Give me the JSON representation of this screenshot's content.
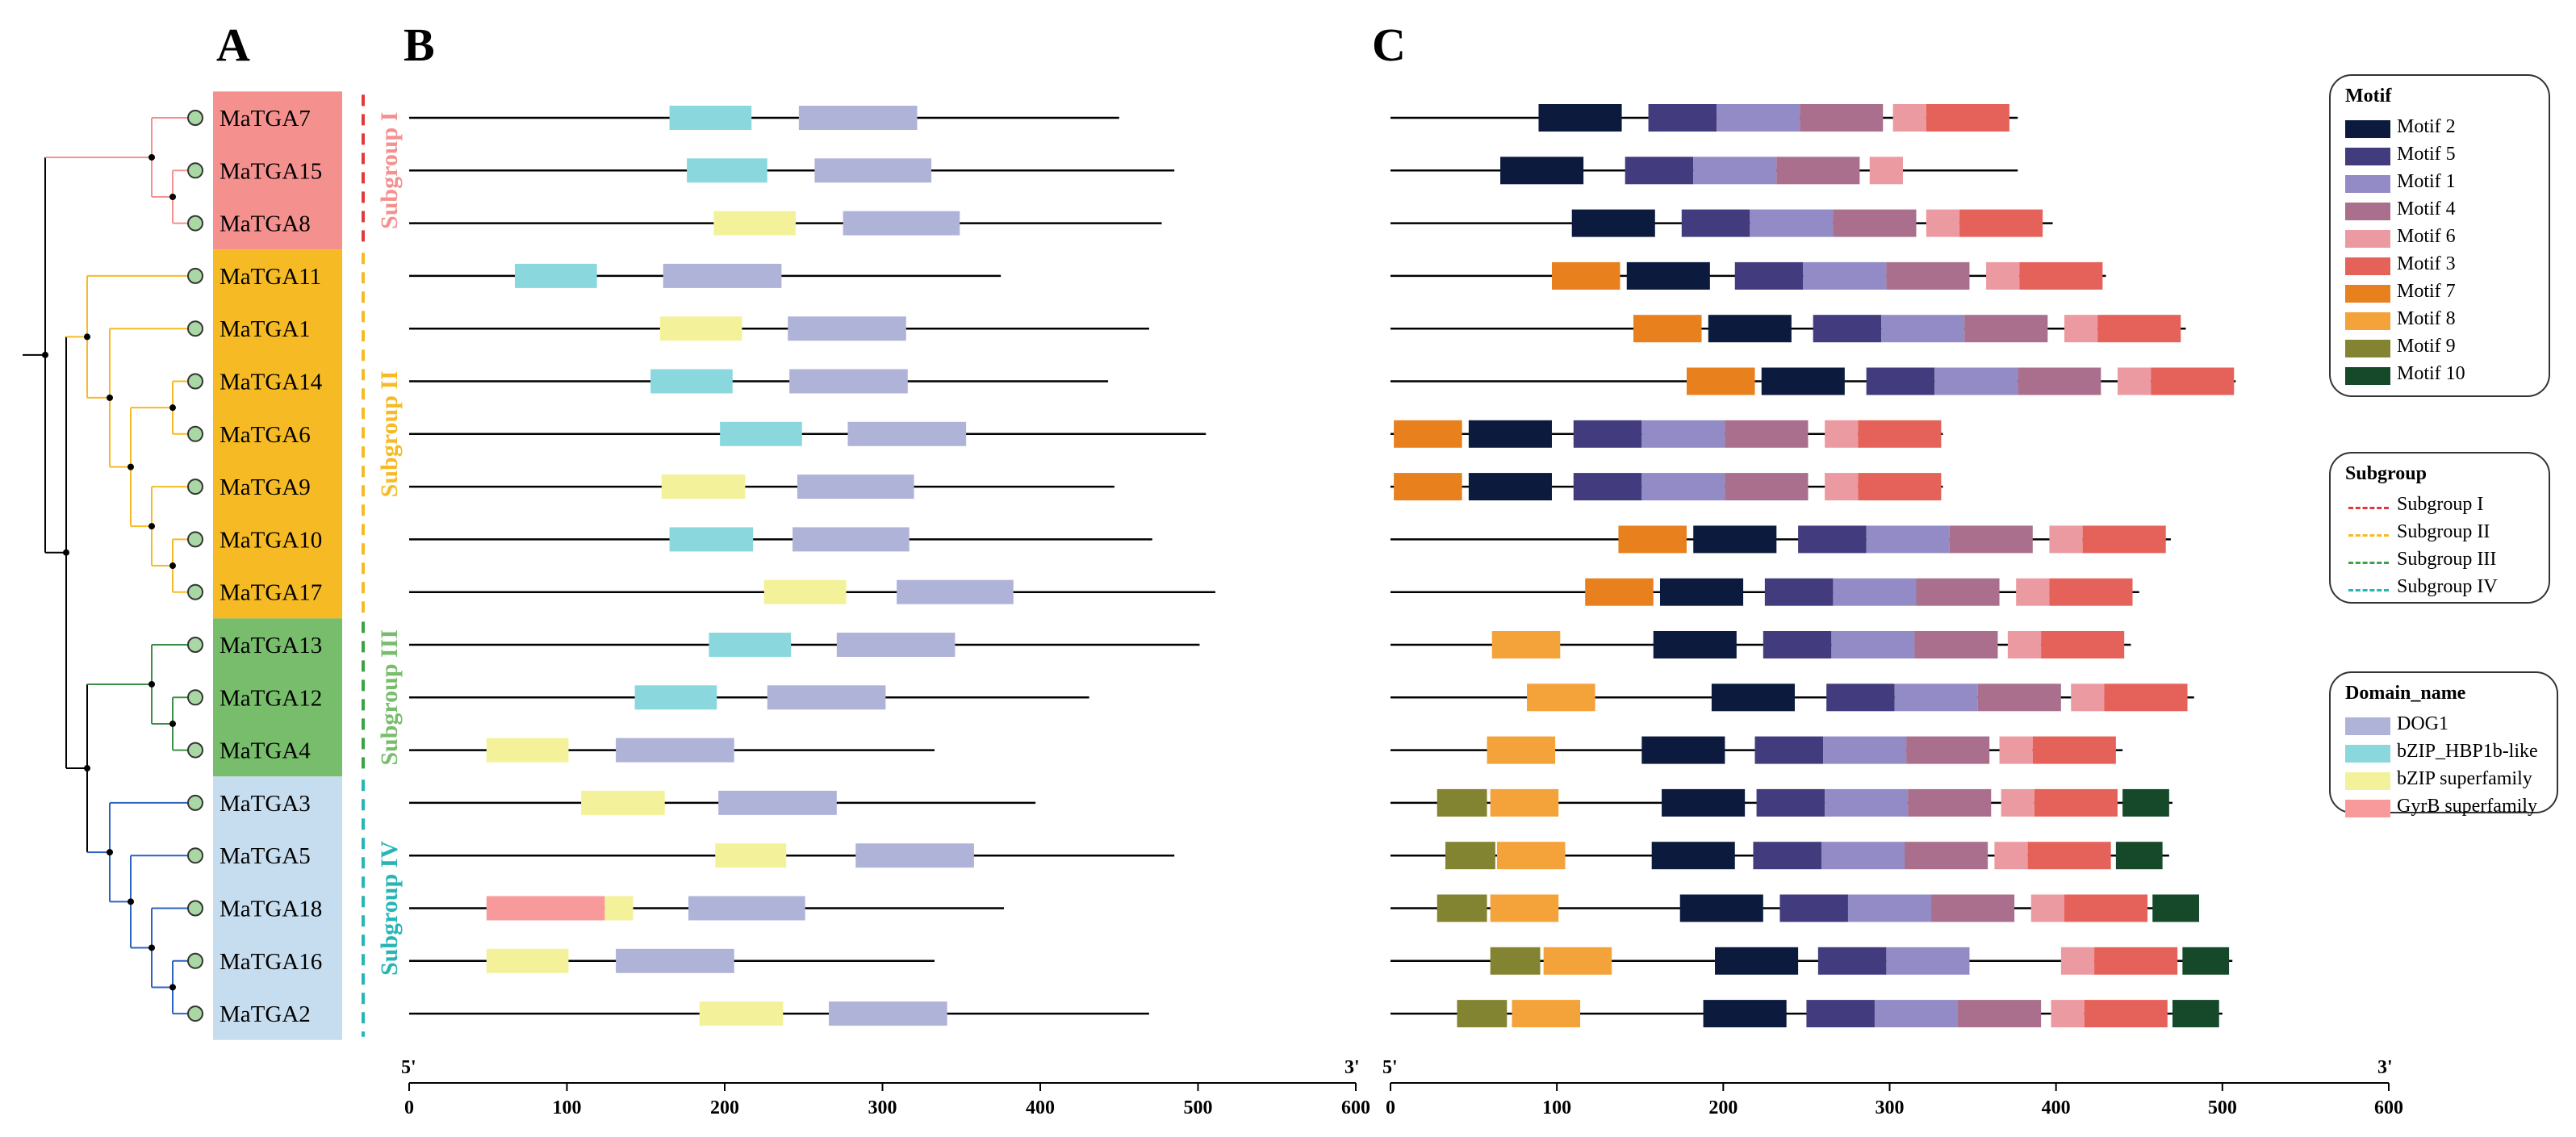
{
  "panels": {
    "a": "A",
    "b": "B",
    "c": "C"
  },
  "genes": [
    {
      "name": "MaTGA7",
      "subgroup": "I"
    },
    {
      "name": "MaTGA15",
      "subgroup": "I"
    },
    {
      "name": "MaTGA8",
      "subgroup": "I"
    },
    {
      "name": "MaTGA11",
      "subgroup": "II"
    },
    {
      "name": "MaTGA1",
      "subgroup": "II"
    },
    {
      "name": "MaTGA14",
      "subgroup": "II"
    },
    {
      "name": "MaTGA6",
      "subgroup": "II"
    },
    {
      "name": "MaTGA9",
      "subgroup": "II"
    },
    {
      "name": "MaTGA10",
      "subgroup": "II"
    },
    {
      "name": "MaTGA17",
      "subgroup": "II"
    },
    {
      "name": "MaTGA13",
      "subgroup": "III"
    },
    {
      "name": "MaTGA12",
      "subgroup": "III"
    },
    {
      "name": "MaTGA4",
      "subgroup": "III"
    },
    {
      "name": "MaTGA3",
      "subgroup": "IV"
    },
    {
      "name": "MaTGA5",
      "subgroup": "IV"
    },
    {
      "name": "MaTGA18",
      "subgroup": "IV"
    },
    {
      "name": "MaTGA16",
      "subgroup": "IV"
    },
    {
      "name": "MaTGA2",
      "subgroup": "IV"
    }
  ],
  "subgroups": {
    "I": {
      "label": "Subgroup I",
      "color": "#f4918f",
      "line": "#e23a3a",
      "text": "#f4918f"
    },
    "II": {
      "label": "Subgroup II",
      "color": "#f6bb24",
      "line": "#f6bb24",
      "text": "#f6bb24"
    },
    "III": {
      "label": "Subgroup III",
      "color": "#77bd6c",
      "line": "#3aa345",
      "text": "#77bd6c"
    },
    "IV": {
      "label": "Subgroup IV",
      "color": "#c6ddef",
      "line": "#27b5b5",
      "text": "#27b5b5"
    }
  },
  "tree": {
    "clade_colors": {
      "I": "#f4918f",
      "II": "#f6bb24",
      "III": "#3a8f45",
      "IV": "#2d63c0",
      "root": "#000000"
    },
    "leaf_node_color": "#a9d8a4"
  },
  "domains": {
    "length": [
      450,
      485,
      477,
      375,
      469,
      443,
      505,
      447,
      471,
      511,
      501,
      431,
      333,
      397,
      485,
      377,
      333,
      469
    ],
    "items": [
      [
        {
          "d": "bZIP_HBP1b-like",
          "s": 165,
          "e": 217
        },
        {
          "d": "DOG1",
          "s": 247,
          "e": 322
        }
      ],
      [
        {
          "d": "bZIP_HBP1b-like",
          "s": 176,
          "e": 227
        },
        {
          "d": "DOG1",
          "s": 257,
          "e": 331
        }
      ],
      [
        {
          "d": "bZIP superfamily",
          "s": 193,
          "e": 245
        },
        {
          "d": "DOG1",
          "s": 275,
          "e": 349
        }
      ],
      [
        {
          "d": "bZIP_HBP1b-like",
          "s": 67,
          "e": 119
        },
        {
          "d": "DOG1",
          "s": 161,
          "e": 236
        }
      ],
      [
        {
          "d": "bZIP superfamily",
          "s": 159,
          "e": 211
        },
        {
          "d": "DOG1",
          "s": 240,
          "e": 315
        }
      ],
      [
        {
          "d": "bZIP_HBP1b-like",
          "s": 153,
          "e": 205
        },
        {
          "d": "DOG1",
          "s": 241,
          "e": 316
        }
      ],
      [
        {
          "d": "bZIP_HBP1b-like",
          "s": 197,
          "e": 249
        },
        {
          "d": "DOG1",
          "s": 278,
          "e": 353
        }
      ],
      [
        {
          "d": "bZIP superfamily",
          "s": 160,
          "e": 213
        },
        {
          "d": "DOG1",
          "s": 246,
          "e": 320
        }
      ],
      [
        {
          "d": "bZIP_HBP1b-like",
          "s": 165,
          "e": 218
        },
        {
          "d": "DOG1",
          "s": 243,
          "e": 317
        }
      ],
      [
        {
          "d": "bZIP superfamily",
          "s": 225,
          "e": 277
        },
        {
          "d": "DOG1",
          "s": 309,
          "e": 383
        }
      ],
      [
        {
          "d": "bZIP_HBP1b-like",
          "s": 190,
          "e": 242
        },
        {
          "d": "DOG1",
          "s": 271,
          "e": 346
        }
      ],
      [
        {
          "d": "bZIP_HBP1b-like",
          "s": 143,
          "e": 195
        },
        {
          "d": "DOG1",
          "s": 227,
          "e": 302
        }
      ],
      [
        {
          "d": "bZIP superfamily",
          "s": 49,
          "e": 101
        },
        {
          "d": "DOG1",
          "s": 131,
          "e": 206
        }
      ],
      [
        {
          "d": "bZIP superfamily",
          "s": 109,
          "e": 162
        },
        {
          "d": "DOG1",
          "s": 196,
          "e": 271
        }
      ],
      [
        {
          "d": "bZIP superfamily",
          "s": 194,
          "e": 239
        },
        {
          "d": "DOG1",
          "s": 283,
          "e": 358
        }
      ],
      [
        {
          "d": "GyrB superfamily",
          "s": 49,
          "e": 124
        },
        {
          "d": "bZIP superfamily",
          "s": 124,
          "e": 142
        },
        {
          "d": "DOG1",
          "s": 177,
          "e": 251
        }
      ],
      [
        {
          "d": "bZIP superfamily",
          "s": 49,
          "e": 101
        },
        {
          "d": "DOG1",
          "s": 131,
          "e": 206
        }
      ],
      [
        {
          "d": "bZIP superfamily",
          "s": 184,
          "e": 237
        },
        {
          "d": "DOG1",
          "s": 266,
          "e": 341
        }
      ]
    ]
  },
  "motifs": {
    "length": [
      377,
      377,
      398,
      430,
      478,
      508,
      332,
      332,
      469,
      450,
      445,
      483,
      440,
      470,
      468,
      484,
      506,
      500
    ],
    "items": [
      [
        {
          "m": "Motif 2",
          "s": 89,
          "e": 139
        },
        {
          "m": "Motif 5",
          "s": 155,
          "e": 196
        },
        {
          "m": "Motif 1",
          "s": 196,
          "e": 246
        },
        {
          "m": "Motif 4",
          "s": 246,
          "e": 296
        },
        {
          "m": "Motif 6",
          "s": 302,
          "e": 322
        },
        {
          "m": "Motif 3",
          "s": 322,
          "e": 372
        }
      ],
      [
        {
          "m": "Motif 2",
          "s": 66,
          "e": 116
        },
        {
          "m": "Motif 5",
          "s": 141,
          "e": 182
        },
        {
          "m": "Motif 1",
          "s": 182,
          "e": 232
        },
        {
          "m": "Motif 4",
          "s": 232,
          "e": 282
        },
        {
          "m": "Motif 6",
          "s": 288,
          "e": 308
        }
      ],
      [
        {
          "m": "Motif 2",
          "s": 109,
          "e": 159
        },
        {
          "m": "Motif 5",
          "s": 175,
          "e": 216
        },
        {
          "m": "Motif 1",
          "s": 216,
          "e": 266
        },
        {
          "m": "Motif 4",
          "s": 266,
          "e": 316
        },
        {
          "m": "Motif 6",
          "s": 322,
          "e": 342
        },
        {
          "m": "Motif 3",
          "s": 342,
          "e": 392
        }
      ],
      [
        {
          "m": "Motif 7",
          "s": 97,
          "e": 138
        },
        {
          "m": "Motif 2",
          "s": 142,
          "e": 192
        },
        {
          "m": "Motif 5",
          "s": 207,
          "e": 248
        },
        {
          "m": "Motif 1",
          "s": 248,
          "e": 298
        },
        {
          "m": "Motif 4",
          "s": 298,
          "e": 348
        },
        {
          "m": "Motif 6",
          "s": 358,
          "e": 378
        },
        {
          "m": "Motif 3",
          "s": 378,
          "e": 428
        }
      ],
      [
        {
          "m": "Motif 7",
          "s": 146,
          "e": 187
        },
        {
          "m": "Motif 2",
          "s": 191,
          "e": 241
        },
        {
          "m": "Motif 5",
          "s": 254,
          "e": 295
        },
        {
          "m": "Motif 1",
          "s": 295,
          "e": 345
        },
        {
          "m": "Motif 4",
          "s": 345,
          "e": 395
        },
        {
          "m": "Motif 6",
          "s": 405,
          "e": 425
        },
        {
          "m": "Motif 3",
          "s": 425,
          "e": 475
        }
      ],
      [
        {
          "m": "Motif 7",
          "s": 178,
          "e": 219
        },
        {
          "m": "Motif 2",
          "s": 223,
          "e": 273
        },
        {
          "m": "Motif 5",
          "s": 286,
          "e": 327
        },
        {
          "m": "Motif 1",
          "s": 327,
          "e": 377
        },
        {
          "m": "Motif 4",
          "s": 377,
          "e": 427
        },
        {
          "m": "Motif 6",
          "s": 437,
          "e": 457
        },
        {
          "m": "Motif 3",
          "s": 457,
          "e": 507
        }
      ],
      [
        {
          "m": "Motif 7",
          "s": 2,
          "e": 43
        },
        {
          "m": "Motif 2",
          "s": 47,
          "e": 97
        },
        {
          "m": "Motif 5",
          "s": 110,
          "e": 151
        },
        {
          "m": "Motif 1",
          "s": 151,
          "e": 201
        },
        {
          "m": "Motif 4",
          "s": 201,
          "e": 251
        },
        {
          "m": "Motif 6",
          "s": 261,
          "e": 281
        },
        {
          "m": "Motif 3",
          "s": 281,
          "e": 331
        }
      ],
      [
        {
          "m": "Motif 7",
          "s": 2,
          "e": 43
        },
        {
          "m": "Motif 2",
          "s": 47,
          "e": 97
        },
        {
          "m": "Motif 5",
          "s": 110,
          "e": 151
        },
        {
          "m": "Motif 1",
          "s": 151,
          "e": 201
        },
        {
          "m": "Motif 4",
          "s": 201,
          "e": 251
        },
        {
          "m": "Motif 6",
          "s": 261,
          "e": 281
        },
        {
          "m": "Motif 3",
          "s": 281,
          "e": 331
        }
      ],
      [
        {
          "m": "Motif 7",
          "s": 137,
          "e": 178
        },
        {
          "m": "Motif 2",
          "s": 182,
          "e": 232
        },
        {
          "m": "Motif 5",
          "s": 245,
          "e": 286
        },
        {
          "m": "Motif 1",
          "s": 286,
          "e": 336
        },
        {
          "m": "Motif 4",
          "s": 336,
          "e": 386
        },
        {
          "m": "Motif 6",
          "s": 396,
          "e": 416
        },
        {
          "m": "Motif 3",
          "s": 416,
          "e": 466
        }
      ],
      [
        {
          "m": "Motif 7",
          "s": 117,
          "e": 158
        },
        {
          "m": "Motif 2",
          "s": 162,
          "e": 212
        },
        {
          "m": "Motif 5",
          "s": 225,
          "e": 266
        },
        {
          "m": "Motif 1",
          "s": 266,
          "e": 316
        },
        {
          "m": "Motif 4",
          "s": 316,
          "e": 366
        },
        {
          "m": "Motif 6",
          "s": 376,
          "e": 396
        },
        {
          "m": "Motif 3",
          "s": 396,
          "e": 446
        }
      ],
      [
        {
          "m": "Motif 8",
          "s": 61,
          "e": 102
        },
        {
          "m": "Motif 2",
          "s": 158,
          "e": 208
        },
        {
          "m": "Motif 5",
          "s": 224,
          "e": 265
        },
        {
          "m": "Motif 1",
          "s": 265,
          "e": 315
        },
        {
          "m": "Motif 4",
          "s": 315,
          "e": 365
        },
        {
          "m": "Motif 6",
          "s": 371,
          "e": 391
        },
        {
          "m": "Motif 3",
          "s": 391,
          "e": 441
        }
      ],
      [
        {
          "m": "Motif 8",
          "s": 82,
          "e": 123
        },
        {
          "m": "Motif 2",
          "s": 193,
          "e": 243
        },
        {
          "m": "Motif 5",
          "s": 262,
          "e": 303
        },
        {
          "m": "Motif 1",
          "s": 303,
          "e": 353
        },
        {
          "m": "Motif 4",
          "s": 353,
          "e": 403
        },
        {
          "m": "Motif 6",
          "s": 409,
          "e": 429
        },
        {
          "m": "Motif 3",
          "s": 429,
          "e": 479
        }
      ],
      [
        {
          "m": "Motif 8",
          "s": 58,
          "e": 99
        },
        {
          "m": "Motif 2",
          "s": 151,
          "e": 201
        },
        {
          "m": "Motif 5",
          "s": 219,
          "e": 260
        },
        {
          "m": "Motif 1",
          "s": 260,
          "e": 310
        },
        {
          "m": "Motif 4",
          "s": 310,
          "e": 360
        },
        {
          "m": "Motif 6",
          "s": 366,
          "e": 386
        },
        {
          "m": "Motif 3",
          "s": 386,
          "e": 436
        }
      ],
      [
        {
          "m": "Motif 9",
          "s": 28,
          "e": 58
        },
        {
          "m": "Motif 8",
          "s": 60,
          "e": 101
        },
        {
          "m": "Motif 2",
          "s": 163,
          "e": 213
        },
        {
          "m": "Motif 5",
          "s": 220,
          "e": 261
        },
        {
          "m": "Motif 1",
          "s": 261,
          "e": 311
        },
        {
          "m": "Motif 4",
          "s": 311,
          "e": 361
        },
        {
          "m": "Motif 6",
          "s": 367,
          "e": 387
        },
        {
          "m": "Motif 3",
          "s": 387,
          "e": 437
        },
        {
          "m": "Motif 10",
          "s": 440,
          "e": 468
        }
      ],
      [
        {
          "m": "Motif 9",
          "s": 33,
          "e": 63
        },
        {
          "m": "Motif 8",
          "s": 64,
          "e": 105
        },
        {
          "m": "Motif 2",
          "s": 157,
          "e": 207
        },
        {
          "m": "Motif 5",
          "s": 218,
          "e": 259
        },
        {
          "m": "Motif 1",
          "s": 259,
          "e": 309
        },
        {
          "m": "Motif 4",
          "s": 309,
          "e": 359
        },
        {
          "m": "Motif 6",
          "s": 363,
          "e": 383
        },
        {
          "m": "Motif 3",
          "s": 383,
          "e": 433
        },
        {
          "m": "Motif 10",
          "s": 436,
          "e": 464
        }
      ],
      [
        {
          "m": "Motif 9",
          "s": 28,
          "e": 58
        },
        {
          "m": "Motif 8",
          "s": 60,
          "e": 101
        },
        {
          "m": "Motif 2",
          "s": 174,
          "e": 224
        },
        {
          "m": "Motif 5",
          "s": 234,
          "e": 275
        },
        {
          "m": "Motif 1",
          "s": 275,
          "e": 325
        },
        {
          "m": "Motif 4",
          "s": 325,
          "e": 375
        },
        {
          "m": "Motif 6",
          "s": 385,
          "e": 405
        },
        {
          "m": "Motif 3",
          "s": 405,
          "e": 455
        },
        {
          "m": "Motif 10",
          "s": 458,
          "e": 486
        }
      ],
      [
        {
          "m": "Motif 9",
          "s": 60,
          "e": 90
        },
        {
          "m": "Motif 8",
          "s": 92,
          "e": 133
        },
        {
          "m": "Motif 2",
          "s": 195,
          "e": 245
        },
        {
          "m": "Motif 5",
          "s": 257,
          "e": 298
        },
        {
          "m": "Motif 1",
          "s": 298,
          "e": 348
        },
        {
          "m": "Motif 6",
          "s": 403,
          "e": 423
        },
        {
          "m": "Motif 3",
          "s": 423,
          "e": 473
        },
        {
          "m": "Motif 10",
          "s": 476,
          "e": 504
        }
      ],
      [
        {
          "m": "Motif 9",
          "s": 40,
          "e": 70
        },
        {
          "m": "Motif 8",
          "s": 73,
          "e": 114
        },
        {
          "m": "Motif 2",
          "s": 188,
          "e": 238
        },
        {
          "m": "Motif 5",
          "s": 250,
          "e": 291
        },
        {
          "m": "Motif 1",
          "s": 291,
          "e": 341
        },
        {
          "m": "Motif 4",
          "s": 341,
          "e": 391
        },
        {
          "m": "Motif 6",
          "s": 397,
          "e": 417
        },
        {
          "m": "Motif 3",
          "s": 417,
          "e": 467
        },
        {
          "m": "Motif 10",
          "s": 470,
          "e": 498
        }
      ]
    ]
  },
  "axis": {
    "left_end": "5'",
    "right_end": "3'",
    "ticks": [
      0,
      100,
      200,
      300,
      400,
      500,
      600
    ],
    "max": 600
  },
  "legends": {
    "motif": {
      "title": "Motif",
      "items": [
        {
          "label": "Motif 2",
          "color": "#0c1b3d"
        },
        {
          "label": "Motif 5",
          "color": "#423c7e"
        },
        {
          "label": "Motif 1",
          "color": "#928bc6"
        },
        {
          "label": "Motif 4",
          "color": "#a96f8c"
        },
        {
          "label": "Motif 6",
          "color": "#ec9aa1"
        },
        {
          "label": "Motif 3",
          "color": "#e5625a"
        },
        {
          "label": "Motif 7",
          "color": "#e8801e"
        },
        {
          "label": "Motif 8",
          "color": "#f4a23a"
        },
        {
          "label": "Motif 9",
          "color": "#838431"
        },
        {
          "label": "Motif 10",
          "color": "#15492a"
        }
      ]
    },
    "subgroup": {
      "title": "Subgroup",
      "items": [
        {
          "label": "Subgroup I",
          "color": "#e23a3a"
        },
        {
          "label": "Subgroup II",
          "color": "#f6bb24"
        },
        {
          "label": "Subgroup III",
          "color": "#3aa345"
        },
        {
          "label": "Subgroup IV",
          "color": "#27b5b5"
        }
      ]
    },
    "domain": {
      "title": "Domain_name",
      "items": [
        {
          "label": "DOG1",
          "color": "#b0b3d8"
        },
        {
          "label": "bZIP_HBP1b-like",
          "color": "#8ad8de"
        },
        {
          "label": "bZIP superfamily",
          "color": "#f3f29a"
        },
        {
          "label": "GyrB superfamily",
          "color": "#f89a9c"
        }
      ]
    }
  }
}
